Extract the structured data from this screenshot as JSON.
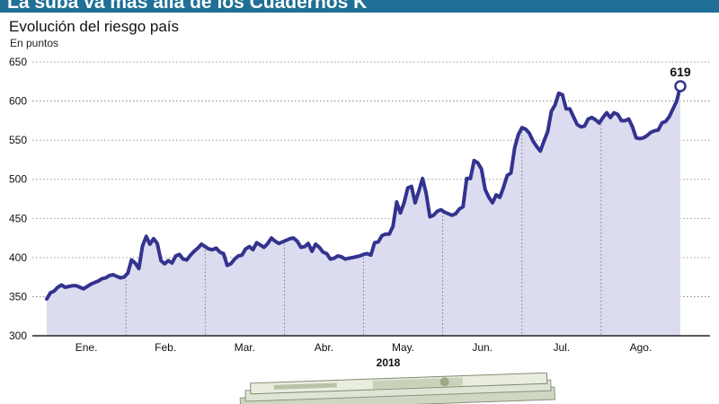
{
  "header": {
    "title": "La suba va más allá de los Cuadernos K",
    "subtitle": "Evolución del riesgo país",
    "unit": "En puntos"
  },
  "colors": {
    "title_bar": "#1f6f96",
    "line": "#33338f",
    "area": "#dcdcf0",
    "axis": "#222222"
  },
  "chart_data": {
    "type": "area",
    "title": "Evolución del riesgo país",
    "ylabel": "En puntos",
    "xlabel": "2018",
    "ylim": [
      300,
      650
    ],
    "yticks": [
      300,
      350,
      400,
      450,
      500,
      550,
      600,
      650
    ],
    "months": [
      "Ene.",
      "Feb.",
      "Mar.",
      "Abr.",
      "May.",
      "Jun.",
      "Jul.",
      "Ago."
    ],
    "annotation": "619",
    "series": [
      {
        "values": [
          347,
          355,
          357,
          362,
          365,
          362,
          363,
          364,
          364,
          362,
          360,
          363,
          366,
          368,
          370,
          373,
          374,
          377,
          378,
          376,
          374,
          375,
          380,
          397,
          393,
          386,
          415,
          427,
          417,
          424,
          418,
          396,
          392,
          396,
          393,
          402,
          404,
          398,
          397,
          403,
          408,
          412,
          417,
          414,
          411,
          410,
          412,
          407,
          405,
          390,
          392,
          398,
          402,
          403,
          411,
          414,
          410,
          419,
          416,
          413,
          418,
          425,
          421,
          418,
          420,
          422,
          424,
          425,
          421,
          413,
          414,
          418,
          408,
          417,
          413,
          407,
          405,
          398,
          399,
          402,
          401,
          398,
          399,
          400,
          401,
          402,
          404,
          405,
          403,
          419,
          420,
          428,
          430,
          430,
          440,
          471,
          457,
          470,
          489,
          491,
          470,
          485,
          501,
          482,
          452,
          454,
          459,
          461,
          458,
          456,
          454,
          456,
          462,
          465,
          501,
          501,
          524,
          521,
          513,
          487,
          477,
          470,
          480,
          477,
          490,
          505,
          508,
          540,
          557,
          566,
          564,
          559,
          549,
          542,
          536,
          549,
          561,
          587,
          595,
          610,
          608,
          590,
          590,
          580,
          570,
          567,
          568,
          577,
          579,
          576,
          572,
          579,
          585,
          579,
          585,
          583,
          575,
          575,
          577,
          567,
          553,
          552,
          553,
          556,
          560,
          562,
          563,
          572,
          574,
          580,
          590,
          600,
          619
        ]
      }
    ]
  }
}
